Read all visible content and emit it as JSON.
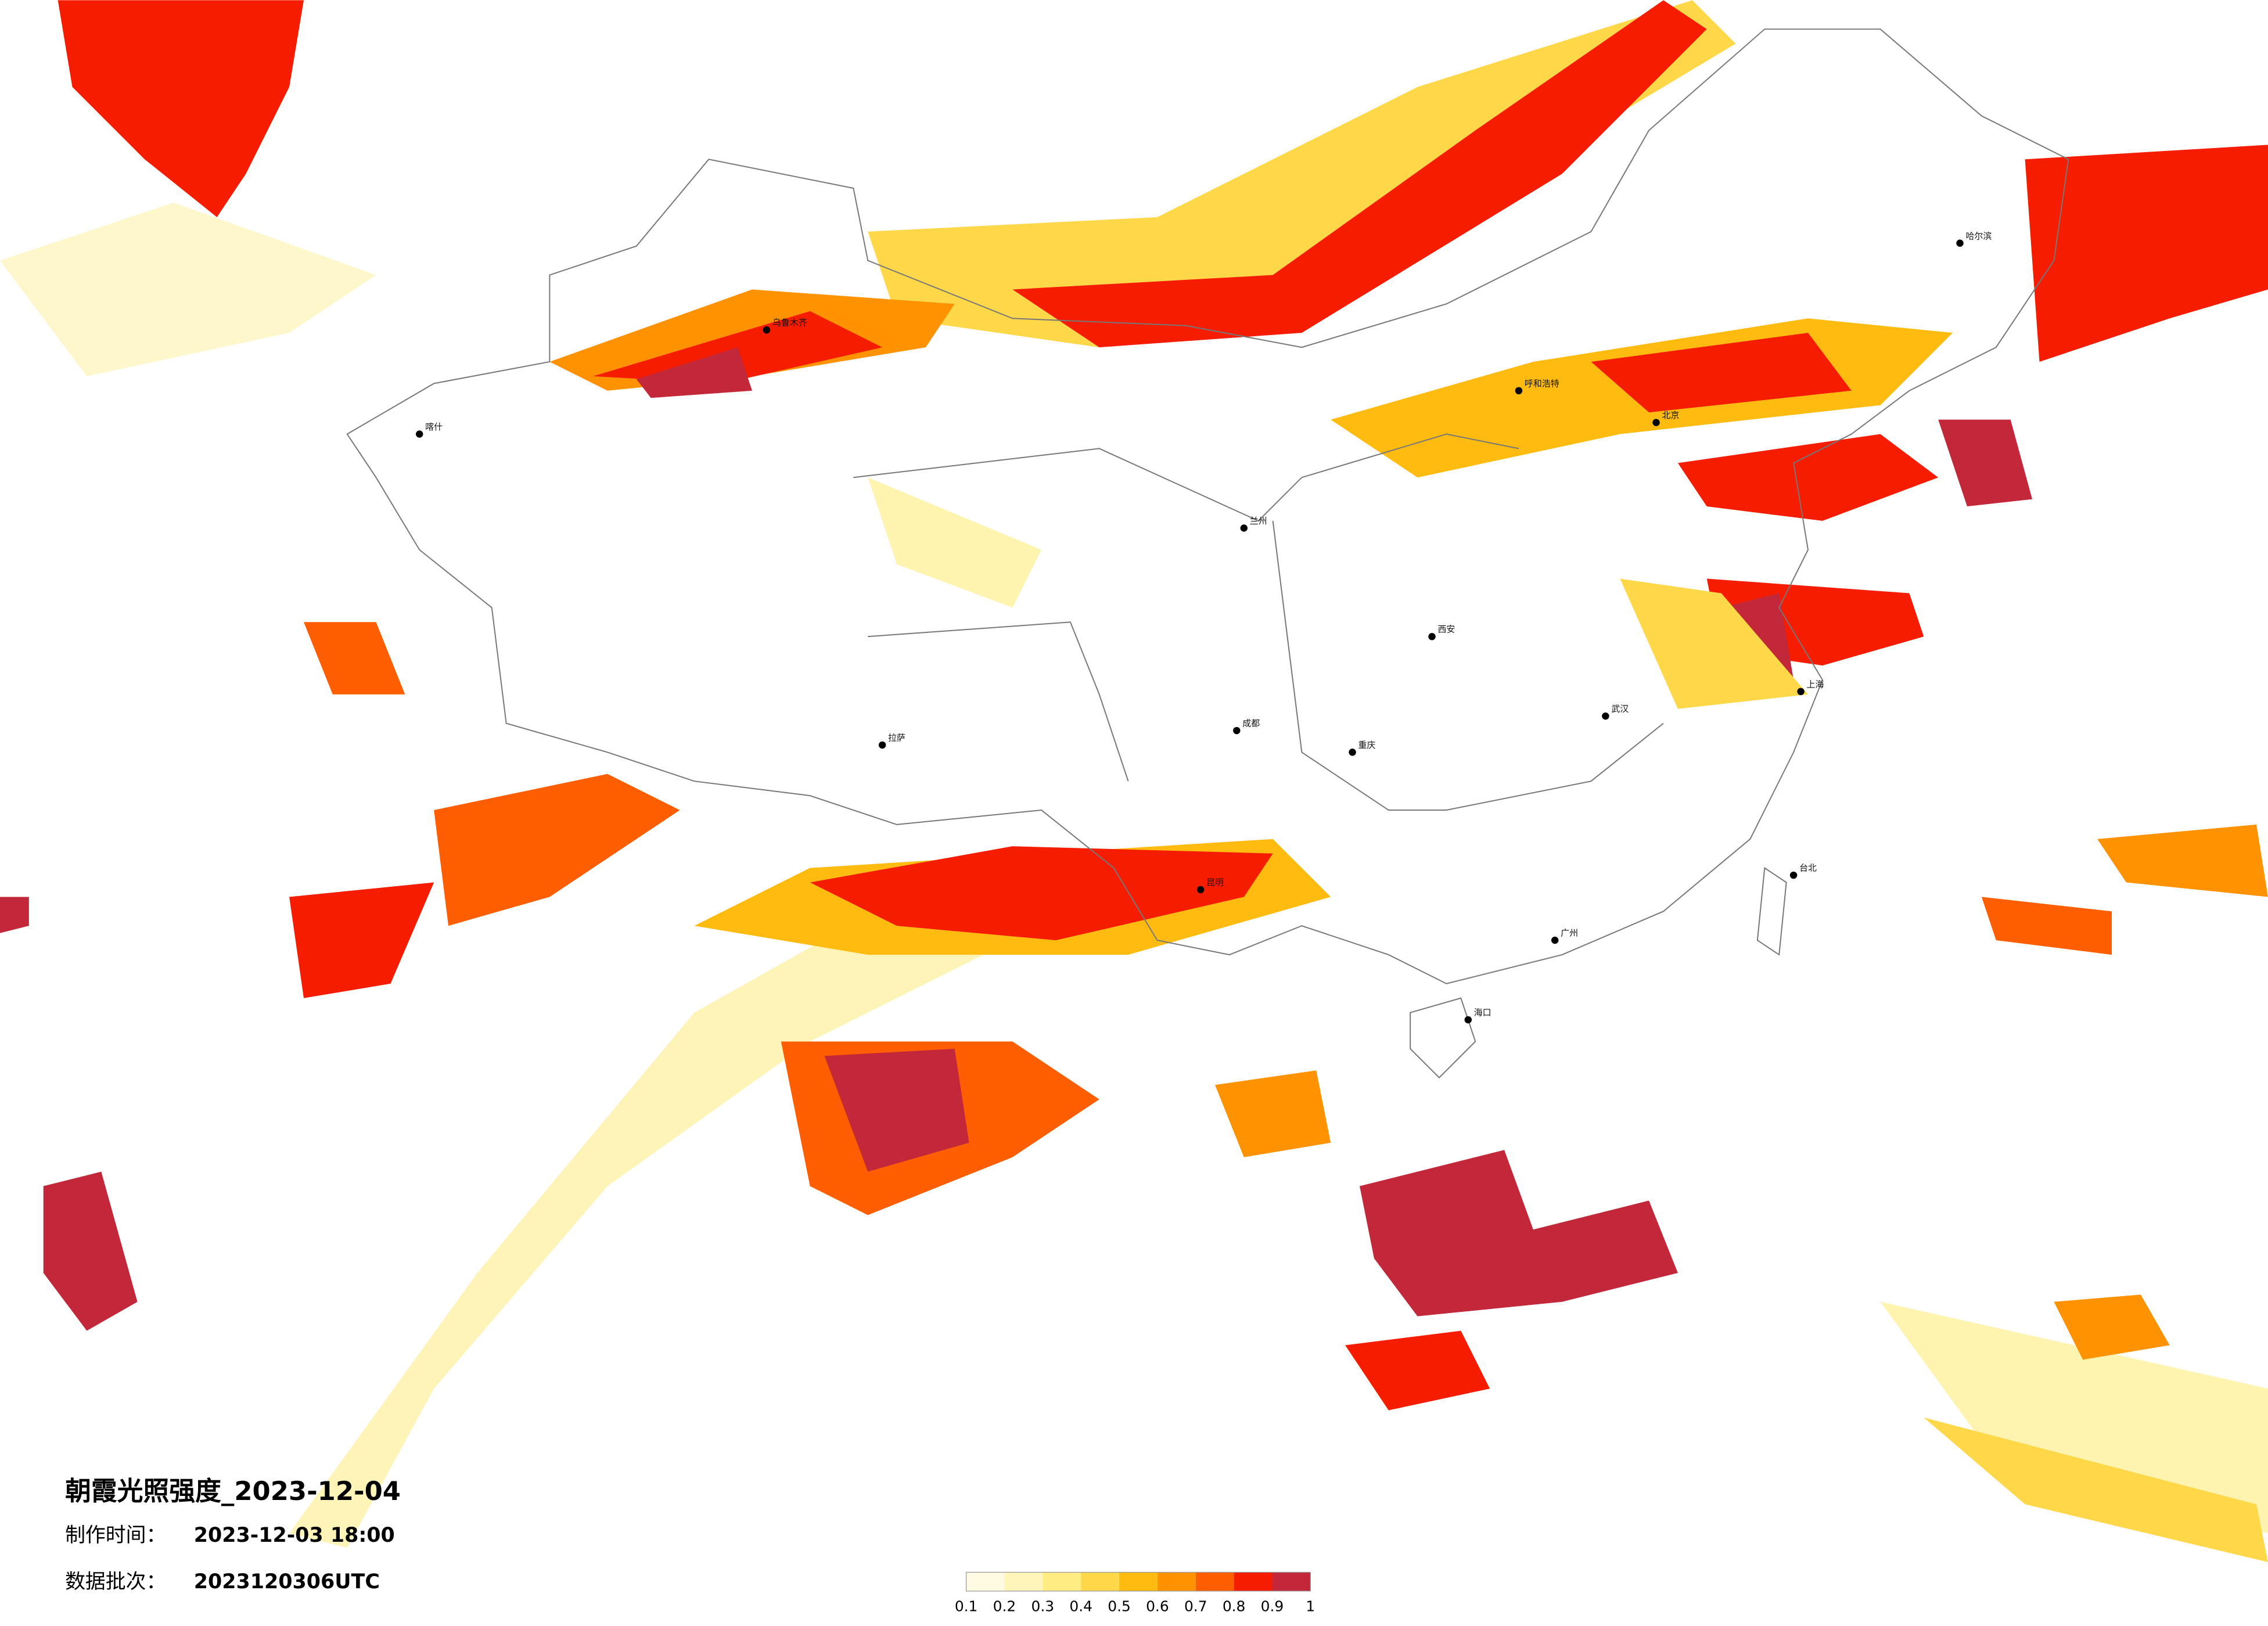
{
  "title": "朝霞光照强度_2023-12-04",
  "made_label": "制作时间：",
  "made_time": "2023-12-03 18:00",
  "batch_label": "数据批次：",
  "batch": "2023120306UTC",
  "legend": {
    "ticks": [
      0.1,
      0.2,
      0.3,
      0.4,
      0.5,
      0.6,
      0.7,
      0.8,
      0.9,
      1
    ],
    "colors": [
      "#fffbe3",
      "#fff5b8",
      "#ffec82",
      "#ffd84a",
      "#ffbb10",
      "#ff9200",
      "#ff5e00",
      "#f51c00",
      "#c3283a"
    ]
  },
  "cities": [
    "乌鲁木齐",
    "北京",
    "上海",
    "广州",
    "成都",
    "拉萨",
    "哈尔滨",
    "西安",
    "武汉",
    "昆明",
    "海口",
    "台北",
    "呼和浩特",
    "兰州",
    "重庆",
    "喀什"
  ]
}
